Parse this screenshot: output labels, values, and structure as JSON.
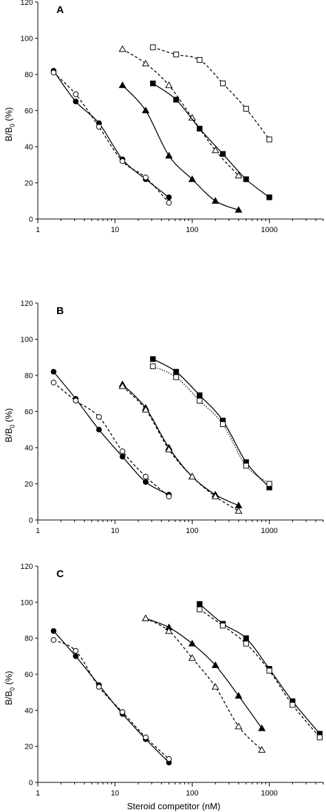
{
  "chart_data": [
    {
      "type": "scatter",
      "panel_label": "A",
      "xscale": "log",
      "xlim": [
        1,
        5000
      ],
      "ylim": [
        0,
        120
      ],
      "ylabel_main": "B/B",
      "ylabel_sub": "0",
      "ylabel_unit": "(%)",
      "yticks": [
        "0",
        "20",
        "40",
        "60",
        "80",
        "100",
        "120"
      ],
      "xticks": [
        "1",
        "10",
        "100",
        "1000"
      ],
      "series": [
        {
          "marker": "circle-filled",
          "line": "solid",
          "x": [
            1.6,
            3.1,
            6.2,
            12.5,
            25,
            50
          ],
          "y": [
            82,
            65,
            53,
            33,
            22,
            12
          ]
        },
        {
          "marker": "circle-open",
          "line": "dashed",
          "x": [
            1.6,
            3.1,
            6.2,
            12.5,
            25,
            50
          ],
          "y": [
            81,
            69,
            51,
            32,
            23,
            9
          ]
        },
        {
          "marker": "triangle-filled",
          "line": "solid",
          "x": [
            12.5,
            25,
            50,
            100,
            200,
            400
          ],
          "y": [
            74,
            60,
            35,
            22,
            10,
            5
          ]
        },
        {
          "marker": "triangle-open",
          "line": "dashed",
          "x": [
            12.5,
            25,
            50,
            100,
            200,
            400
          ],
          "y": [
            94,
            86,
            74,
            56,
            38,
            24
          ]
        },
        {
          "marker": "square-filled",
          "line": "solid",
          "x": [
            31,
            62,
            125,
            250,
            500,
            1000
          ],
          "y": [
            75,
            66,
            50,
            36,
            22,
            12
          ]
        },
        {
          "marker": "square-open",
          "line": "dashed",
          "x": [
            31,
            62,
            125,
            250,
            500,
            1000
          ],
          "y": [
            95,
            91,
            88,
            75,
            61,
            44
          ]
        }
      ]
    },
    {
      "type": "scatter",
      "panel_label": "B",
      "xscale": "log",
      "xlim": [
        1,
        5000
      ],
      "ylim": [
        0,
        120
      ],
      "ylabel_main": "B/B",
      "ylabel_sub": "0",
      "ylabel_unit": "(%)",
      "yticks": [
        "0",
        "20",
        "40",
        "60",
        "80",
        "100",
        "120"
      ],
      "xticks": [
        "1",
        "10",
        "100",
        "1000"
      ],
      "series": [
        {
          "marker": "circle-filled",
          "line": "solid",
          "x": [
            1.6,
            3.1,
            6.2,
            12.5,
            25,
            50
          ],
          "y": [
            82,
            67,
            50,
            35,
            21,
            14
          ]
        },
        {
          "marker": "circle-open",
          "line": "dashed",
          "x": [
            1.6,
            3.1,
            6.2,
            12.5,
            25,
            50
          ],
          "y": [
            76,
            66,
            57,
            38,
            24,
            13
          ]
        },
        {
          "marker": "triangle-filled",
          "line": "solid",
          "x": [
            12.5,
            25,
            50,
            100,
            200,
            400
          ],
          "y": [
            75,
            62,
            40,
            24,
            14,
            8
          ]
        },
        {
          "marker": "triangle-open",
          "line": "dashed",
          "x": [
            12.5,
            25,
            50,
            100,
            200,
            400
          ],
          "y": [
            74,
            61,
            39,
            24,
            13,
            5
          ]
        },
        {
          "marker": "square-filled",
          "line": "solid",
          "x": [
            31,
            62,
            125,
            250,
            500,
            1000
          ],
          "y": [
            89,
            82,
            69,
            55,
            32,
            18
          ]
        },
        {
          "marker": "square-open",
          "line": "dotted",
          "x": [
            31,
            62,
            125,
            250,
            500,
            1000
          ],
          "y": [
            85,
            79,
            66,
            53,
            30,
            20
          ]
        }
      ]
    },
    {
      "type": "scatter",
      "panel_label": "C",
      "xscale": "log",
      "xlim": [
        1,
        5000
      ],
      "ylim": [
        0,
        120
      ],
      "ylabel_main": "B/B",
      "ylabel_sub": "0",
      "ylabel_unit": "(%)",
      "xlabel": "Steroid competitor (nM)",
      "yticks": [
        "0",
        "20",
        "40",
        "60",
        "80",
        "100",
        "120"
      ],
      "xticks": [
        "1",
        "10",
        "100",
        "1000"
      ],
      "series": [
        {
          "marker": "circle-filled",
          "line": "solid",
          "x": [
            1.6,
            3.1,
            6.2,
            12.5,
            25,
            50
          ],
          "y": [
            84,
            70,
            54,
            38,
            24,
            11
          ]
        },
        {
          "marker": "circle-open",
          "line": "dashed",
          "x": [
            1.6,
            3.1,
            6.2,
            12.5,
            25,
            50
          ],
          "y": [
            79,
            73,
            53,
            39,
            25,
            13
          ]
        },
        {
          "marker": "triangle-filled",
          "line": "solid",
          "x": [
            25,
            50,
            100,
            200,
            400,
            800
          ],
          "y": [
            91,
            86,
            77,
            65,
            48,
            30
          ]
        },
        {
          "marker": "triangle-open",
          "line": "dashed",
          "x": [
            25,
            50,
            100,
            200,
            400,
            800
          ],
          "y": [
            91,
            84,
            69,
            53,
            31,
            18
          ]
        },
        {
          "marker": "square-filled",
          "line": "solid",
          "x": [
            125,
            250,
            500,
            1000,
            2000,
            4500
          ],
          "y": [
            99,
            88,
            80,
            63,
            45,
            27
          ]
        },
        {
          "marker": "square-open",
          "line": "dashed",
          "x": [
            125,
            250,
            500,
            1000,
            2000,
            4500
          ],
          "y": [
            96,
            87,
            77,
            62,
            43,
            25
          ]
        }
      ]
    }
  ]
}
